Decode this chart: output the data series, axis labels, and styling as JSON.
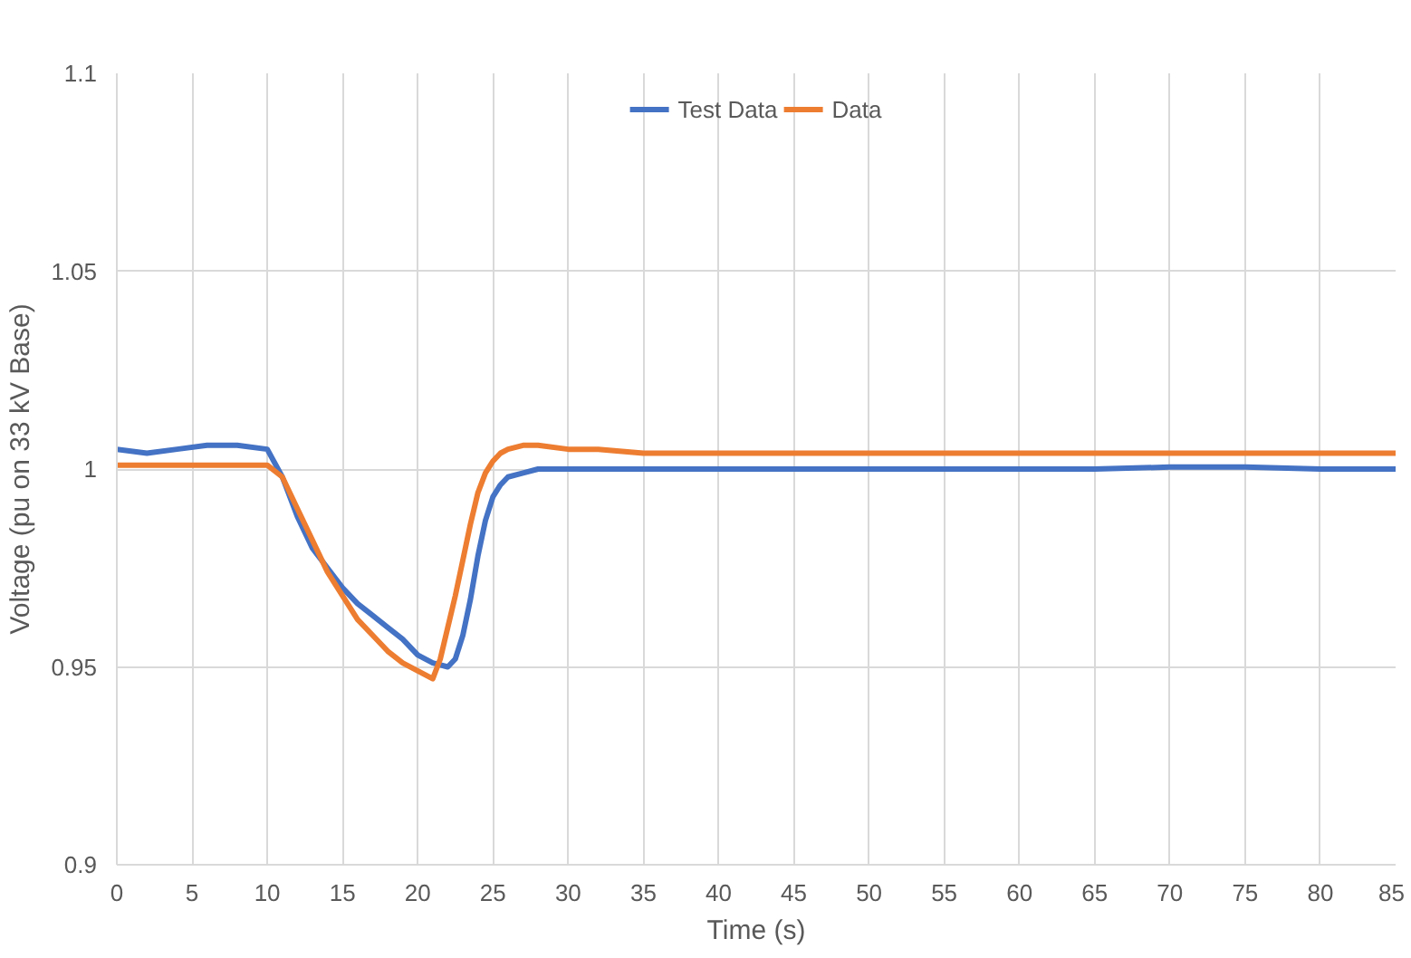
{
  "chart_data": {
    "type": "line",
    "xlabel": "Time (s)",
    "ylabel": "Voltage (pu on 33 kV Base)",
    "xlim": [
      0,
      85
    ],
    "ylim": [
      0.9,
      1.1
    ],
    "xticks": [
      0,
      5,
      10,
      15,
      20,
      25,
      30,
      35,
      40,
      45,
      50,
      55,
      60,
      65,
      70,
      75,
      80,
      85
    ],
    "yticks": [
      0.9,
      0.95,
      1,
      1.05,
      1.1
    ],
    "grid": true,
    "legend": "top",
    "marker": "none",
    "line_style": "solid",
    "series": [
      {
        "name": "Test Data",
        "color": "#4472c4",
        "x": [
          0,
          2,
          4,
          6,
          8,
          10,
          11,
          12,
          13,
          14,
          15,
          16,
          17,
          18,
          19,
          20,
          21,
          22,
          22.5,
          23,
          23.5,
          24,
          24.5,
          25,
          25.5,
          26,
          27,
          28,
          30,
          35,
          40,
          45,
          50,
          55,
          60,
          65,
          70,
          75,
          80,
          85
        ],
        "values": [
          1.005,
          1.004,
          1.005,
          1.006,
          1.006,
          1.005,
          0.998,
          0.988,
          0.98,
          0.975,
          0.97,
          0.966,
          0.963,
          0.96,
          0.957,
          0.953,
          0.951,
          0.95,
          0.952,
          0.958,
          0.967,
          0.978,
          0.987,
          0.993,
          0.996,
          0.998,
          0.999,
          1.0,
          1.0,
          1.0,
          1.0,
          1.0,
          1.0,
          1.0,
          1.0,
          1.0,
          1.0005,
          1.0005,
          1.0,
          1.0
        ]
      },
      {
        "name": "Data",
        "color": "#ed7d31",
        "x": [
          0,
          5,
          10,
          11,
          12,
          13,
          14,
          15,
          16,
          17,
          18,
          19,
          20,
          21,
          21.5,
          22,
          22.5,
          23,
          23.5,
          24,
          24.5,
          25,
          25.5,
          26,
          27,
          28,
          30,
          32,
          35,
          40,
          50,
          60,
          70,
          80,
          85
        ],
        "values": [
          1.001,
          1.001,
          1.001,
          0.998,
          0.99,
          0.982,
          0.974,
          0.968,
          0.962,
          0.958,
          0.954,
          0.951,
          0.949,
          0.947,
          0.952,
          0.96,
          0.968,
          0.977,
          0.986,
          0.994,
          0.999,
          1.002,
          1.004,
          1.005,
          1.006,
          1.006,
          1.005,
          1.005,
          1.004,
          1.004,
          1.004,
          1.004,
          1.004,
          1.004,
          1.004
        ]
      }
    ]
  }
}
